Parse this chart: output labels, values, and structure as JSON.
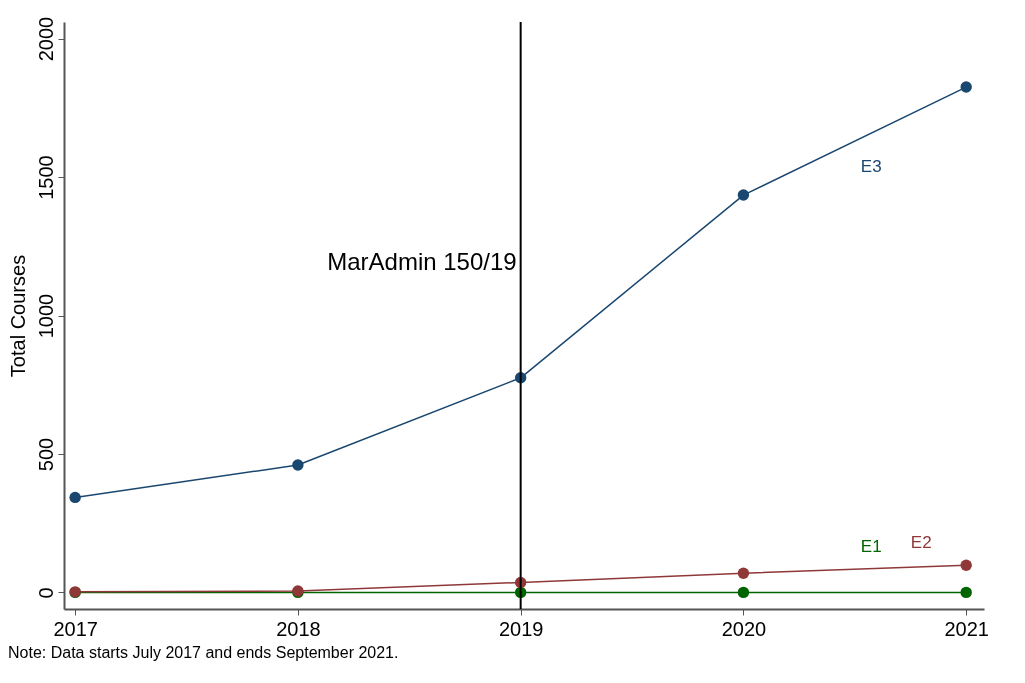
{
  "chart_data": {
    "type": "line",
    "ylabel": "Total Courses",
    "x": [
      2017,
      2018,
      2019,
      2020,
      2021
    ],
    "series": [
      {
        "name": "E1",
        "color": "#006400",
        "values": [
          0,
          0,
          0,
          0,
          0
        ]
      },
      {
        "name": "E2",
        "color": "#903838",
        "values": [
          2,
          5,
          36,
          69,
          98
        ]
      },
      {
        "name": "E3",
        "color": "#1a476f",
        "values": [
          343,
          460,
          775,
          1435,
          1825
        ]
      }
    ],
    "xlim": [
      2016.95,
      2021.08
    ],
    "xticks": [
      2017,
      2018,
      2019,
      2020,
      2021
    ],
    "ylim": [
      -60,
      2060
    ],
    "yticks": [
      0,
      500,
      1000,
      1500,
      2000
    ],
    "ref_lines": [
      {
        "axis": "x",
        "value": 2019,
        "label": "MarAdmin 150/19",
        "color": "#000000"
      }
    ],
    "marker": "circle",
    "grid": false,
    "legend": false,
    "annotations": [
      "Note: Data starts July 2017 and ends September 2021."
    ]
  }
}
